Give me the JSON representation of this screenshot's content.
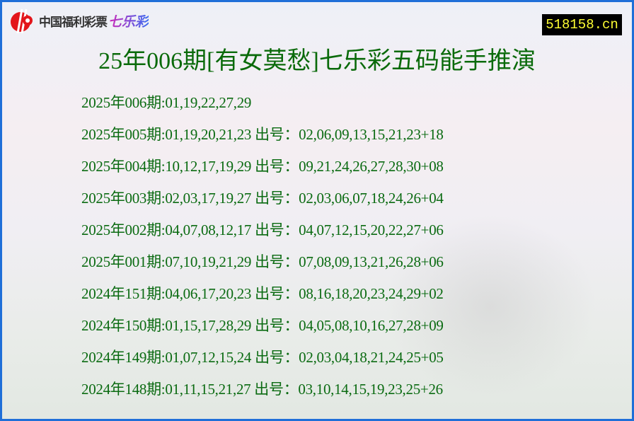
{
  "header": {
    "logo_text": "中国福利彩票",
    "logo_brand": "七乐彩",
    "site_badge": "518158.cn",
    "title": "25年006期[有女莫愁]七乐彩五码能手推演"
  },
  "colors": {
    "border": "#1f6fd8",
    "text": "#0b6b12",
    "badge_bg": "#000000",
    "badge_text": "#ffff33",
    "logo_red": "#e3161b"
  },
  "rows": [
    {
      "text": "2025年006期:01,19,22,27,29"
    },
    {
      "text": "2025年005期:01,19,20,21,23 出号：02,06,09,13,15,21,23+18"
    },
    {
      "text": "2025年004期:10,12,17,19,29 出号：09,21,24,26,27,28,30+08"
    },
    {
      "text": "2025年003期:02,03,17,19,27 出号：02,03,06,07,18,24,26+04"
    },
    {
      "text": "2025年002期:04,07,08,12,17 出号：04,07,12,15,20,22,27+06"
    },
    {
      "text": "2025年001期:07,10,19,21,29 出号：07,08,09,13,21,26,28+06"
    },
    {
      "text": "2024年151期:04,06,17,20,23 出号：08,16,18,20,23,24,29+02"
    },
    {
      "text": "2024年150期:01,15,17,28,29 出号：04,05,08,10,16,27,28+09"
    },
    {
      "text": "2024年149期:01,07,12,15,24 出号：02,03,04,18,21,24,25+05"
    },
    {
      "text": "2024年148期:01,11,15,21,27 出号：03,10,14,15,19,23,25+26"
    }
  ]
}
